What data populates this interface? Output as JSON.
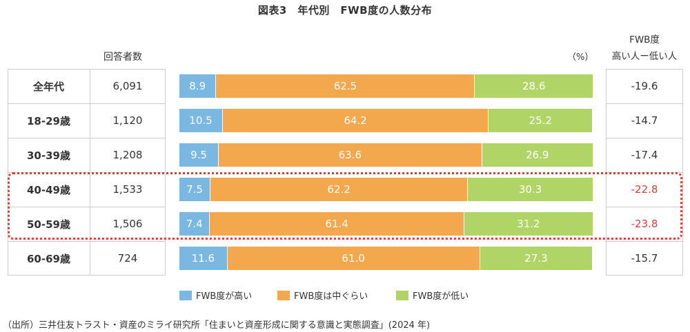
{
  "chart_data": {
    "type": "bar",
    "stacked": true,
    "orientation": "horizontal",
    "title": "図表3　年代別　FWB度の人数分布",
    "unit": "（%）",
    "count_header": "回答者数",
    "diff_header": [
      "FWB度",
      "高い人ー低い人"
    ],
    "categories": [
      "全年代",
      "18-29歳",
      "30-39歳",
      "40-49歳",
      "50-59歳",
      "60-69歳"
    ],
    "counts": [
      "6,091",
      "1,120",
      "1,208",
      "1,533",
      "1,506",
      "724"
    ],
    "series": [
      {
        "name": "FWB度が高い",
        "color": "#7ab8e2",
        "values": [
          8.9,
          10.5,
          9.5,
          7.5,
          7.4,
          11.6
        ]
      },
      {
        "name": "FWB度は中ぐらい",
        "color": "#f4a84d",
        "values": [
          62.5,
          64.2,
          63.6,
          62.2,
          61.4,
          61.0
        ]
      },
      {
        "name": "FWB度が低い",
        "color": "#b0d465",
        "values": [
          28.6,
          25.2,
          26.9,
          30.3,
          31.2,
          27.3
        ]
      }
    ],
    "value_labels": [
      [
        "8.9",
        "62.5",
        "28.6"
      ],
      [
        "10.5",
        "64.2",
        "25.2"
      ],
      [
        "9.5",
        "63.6",
        "26.9"
      ],
      [
        "7.5",
        "62.2",
        "30.3"
      ],
      [
        "7.4",
        "61.4",
        "31.2"
      ],
      [
        "11.6",
        "61.0",
        "27.3"
      ]
    ],
    "diff": [
      "-19.6",
      "-14.7",
      "-17.4",
      "-22.8",
      "-23.8",
      "-15.7"
    ],
    "highlighted": [
      false,
      false,
      false,
      true,
      true,
      false
    ],
    "highlight_color": "#e53935",
    "xlim": [
      0,
      100
    ]
  },
  "source": "（出所）三井住友トラスト・資産のミライ研究所「住まいと資産形成に関する意識と実態調査」(2024 年)"
}
